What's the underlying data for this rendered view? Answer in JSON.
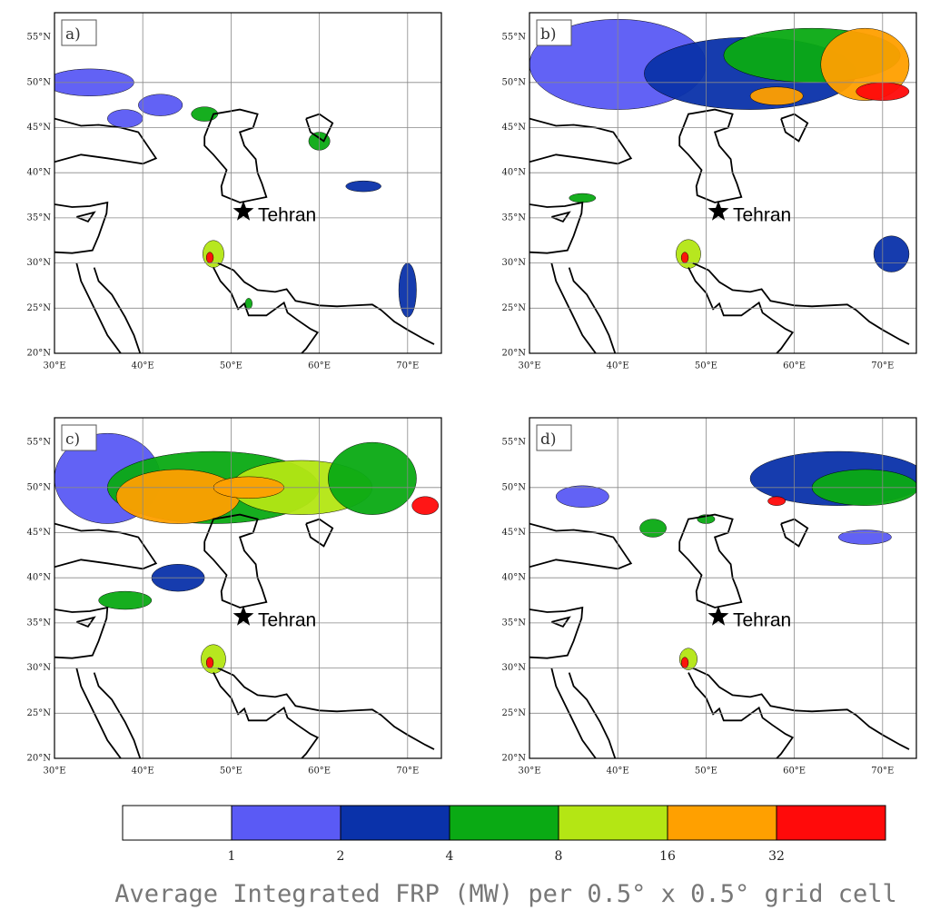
{
  "panels": [
    {
      "label": "a)",
      "marker": "Tehran"
    },
    {
      "label": "b)",
      "marker": "Tehran"
    },
    {
      "label": "c)",
      "marker": "Tehran"
    },
    {
      "label": "d)",
      "marker": "Tehran"
    }
  ],
  "axes": {
    "lat_ticks": [
      "55°N",
      "50°N",
      "45°N",
      "40°N",
      "35°N",
      "30°N",
      "25°N",
      "20°N"
    ],
    "lon_ticks": [
      "30°E",
      "40°E",
      "50°E",
      "60°E",
      "70°E"
    ]
  },
  "colorbar": {
    "levels": [
      1,
      2,
      4,
      8,
      16,
      32
    ],
    "colors": [
      "#ffffff",
      "#5a5af5",
      "#0a32aa",
      "#0aaa14",
      "#b4e614",
      "#ffa000",
      "#ff0a0a"
    ],
    "title": "Average Integrated FRP (MW) per 0.5° x 0.5° grid cell"
  }
}
